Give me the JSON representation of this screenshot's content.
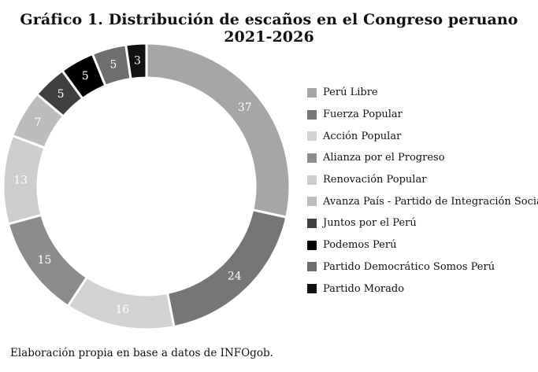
{
  "title": "Gráfico 1. Distribución de escaños en el Congreso peruano 2021-2026",
  "source": "Elaboración propia en base a datos de INFOgob.",
  "chart_data": {
    "type": "pie",
    "variant": "donut",
    "legend_placement": "right",
    "slices": [
      {
        "label": "Perú Libre",
        "value": 37,
        "color": "#a6a6a6"
      },
      {
        "label": "Fuerza Popular",
        "value": 24,
        "color": "#767676"
      },
      {
        "label": "Acción Popular",
        "value": 16,
        "color": "#d2d2d2"
      },
      {
        "label": "Alianza por el Progreso",
        "value": 15,
        "color": "#8c8c8c"
      },
      {
        "label": "Renovación Popular",
        "value": 13,
        "color": "#cdcdcd"
      },
      {
        "label": "Avanza País - Partido de Integración Social",
        "value": 7,
        "color": "#bdbdbd"
      },
      {
        "label": "Juntos por el Perú",
        "value": 5,
        "color": "#3f3f3f"
      },
      {
        "label": "Podemos Perú",
        "value": 5,
        "color": "#000000"
      },
      {
        "label": "Partido Democrático Somos Perú",
        "value": 5,
        "color": "#6e6e6e"
      },
      {
        "label": "Partido Morado",
        "value": 3,
        "color": "#111111"
      }
    ]
  }
}
